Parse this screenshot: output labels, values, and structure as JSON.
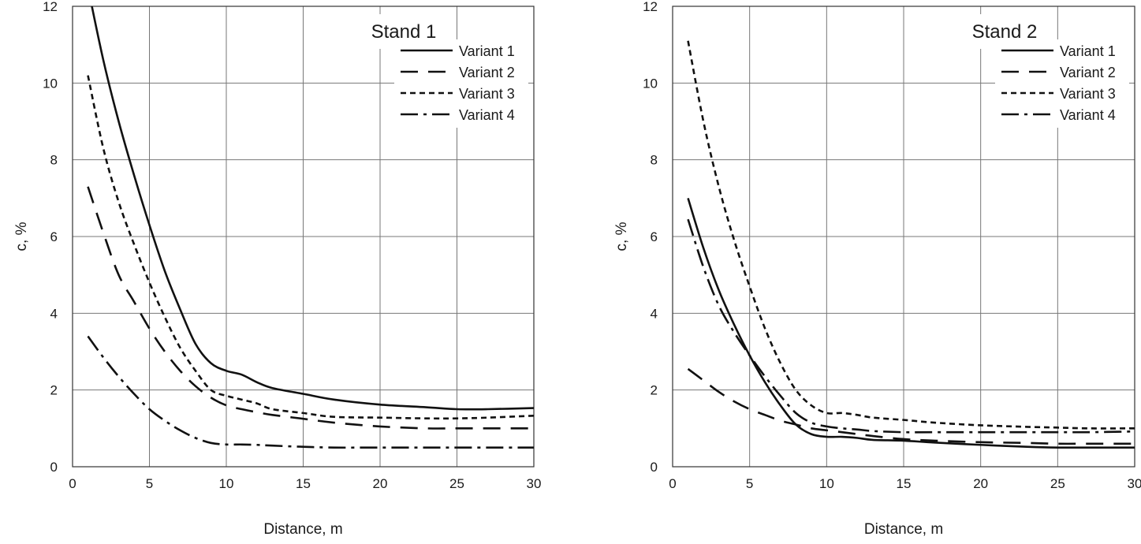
{
  "chart_data": [
    {
      "type": "line",
      "title": "Stand 1",
      "xlabel": "Distance, m",
      "ylabel": "c, %",
      "xlim": [
        0,
        30
      ],
      "ylim": [
        0,
        12
      ],
      "xticks": [
        0,
        5,
        10,
        15,
        20,
        25,
        30
      ],
      "yticks": [
        0,
        2,
        4,
        6,
        8,
        10,
        12
      ],
      "grid": true,
      "legend_position": "top-right",
      "series": [
        {
          "name": "Variant 1",
          "dash": "solid",
          "x": [
            1,
            2,
            3,
            4,
            5,
            6,
            7,
            8,
            9,
            10,
            11,
            12,
            13,
            15,
            17,
            20,
            23,
            25,
            27,
            30
          ],
          "y": [
            12.5,
            10.6,
            9.0,
            7.6,
            6.3,
            5.1,
            4.1,
            3.2,
            2.7,
            2.5,
            2.4,
            2.2,
            2.05,
            1.9,
            1.75,
            1.62,
            1.55,
            1.5,
            1.5,
            1.53
          ]
        },
        {
          "name": "Variant 2",
          "dash": "long",
          "x": [
            1,
            2,
            3,
            4,
            5,
            6,
            7,
            8,
            9,
            10,
            11,
            12,
            13,
            15,
            17,
            20,
            23,
            25,
            27,
            30
          ],
          "y": [
            7.3,
            6.1,
            5.0,
            4.3,
            3.6,
            3.0,
            2.5,
            2.1,
            1.8,
            1.6,
            1.5,
            1.42,
            1.35,
            1.25,
            1.15,
            1.05,
            1.0,
            1.0,
            1.0,
            1.0
          ]
        },
        {
          "name": "Variant 3",
          "dash": "short",
          "x": [
            1,
            2,
            3,
            4,
            5,
            6,
            7,
            8,
            9,
            10,
            11,
            12,
            13,
            15,
            17,
            20,
            23,
            25,
            27,
            30
          ],
          "y": [
            10.2,
            8.3,
            6.9,
            5.8,
            4.8,
            3.9,
            3.1,
            2.5,
            2.0,
            1.85,
            1.75,
            1.65,
            1.5,
            1.4,
            1.3,
            1.28,
            1.26,
            1.26,
            1.28,
            1.33
          ]
        },
        {
          "name": "Variant 4",
          "dash": "dashdot",
          "x": [
            1,
            2,
            3,
            4,
            5,
            6,
            7,
            8,
            9,
            10,
            11,
            12,
            13,
            15,
            17,
            20,
            23,
            25,
            27,
            30
          ],
          "y": [
            3.4,
            2.85,
            2.35,
            1.9,
            1.5,
            1.2,
            0.95,
            0.75,
            0.62,
            0.58,
            0.58,
            0.57,
            0.55,
            0.52,
            0.5,
            0.5,
            0.5,
            0.5,
            0.5,
            0.5
          ]
        }
      ]
    },
    {
      "type": "line",
      "title": "Stand 2",
      "xlabel": "Distance, m",
      "ylabel": "c, %",
      "xlim": [
        0,
        30
      ],
      "ylim": [
        0,
        12
      ],
      "xticks": [
        0,
        5,
        10,
        15,
        20,
        25,
        30
      ],
      "yticks": [
        0,
        2,
        4,
        6,
        8,
        10,
        12
      ],
      "grid": true,
      "legend_position": "top-right",
      "series": [
        {
          "name": "Variant 1",
          "dash": "solid",
          "x": [
            1,
            2,
            3,
            4,
            5,
            6,
            7,
            8,
            9,
            10,
            11,
            12,
            13,
            15,
            17,
            20,
            23,
            25,
            27,
            30
          ],
          "y": [
            7.0,
            5.7,
            4.6,
            3.7,
            2.9,
            2.2,
            1.6,
            1.1,
            0.85,
            0.78,
            0.78,
            0.75,
            0.7,
            0.68,
            0.63,
            0.57,
            0.52,
            0.5,
            0.5,
            0.5
          ]
        },
        {
          "name": "Variant 2",
          "dash": "long",
          "x": [
            1,
            2,
            3,
            4,
            5,
            6,
            7,
            8,
            9,
            10,
            11,
            12,
            13,
            15,
            17,
            20,
            23,
            25,
            27,
            30
          ],
          "y": [
            2.55,
            2.25,
            1.95,
            1.7,
            1.5,
            1.35,
            1.2,
            1.1,
            1.0,
            0.95,
            0.9,
            0.85,
            0.8,
            0.72,
            0.68,
            0.64,
            0.62,
            0.6,
            0.6,
            0.6
          ]
        },
        {
          "name": "Variant 3",
          "dash": "short",
          "x": [
            1,
            2,
            3,
            4,
            5,
            6,
            7,
            8,
            9,
            10,
            11,
            12,
            13,
            15,
            17,
            20,
            23,
            25,
            27,
            30
          ],
          "y": [
            11.1,
            9.0,
            7.3,
            5.9,
            4.7,
            3.6,
            2.7,
            2.0,
            1.6,
            1.4,
            1.4,
            1.35,
            1.28,
            1.22,
            1.15,
            1.08,
            1.04,
            1.02,
            1.0,
            1.0
          ]
        },
        {
          "name": "Variant 4",
          "dash": "dashdot",
          "x": [
            1,
            2,
            3,
            4,
            5,
            6,
            7,
            8,
            9,
            10,
            11,
            12,
            13,
            15,
            17,
            20,
            23,
            25,
            27,
            30
          ],
          "y": [
            6.45,
            5.2,
            4.2,
            3.5,
            2.9,
            2.35,
            1.85,
            1.4,
            1.15,
            1.05,
            1.0,
            0.97,
            0.93,
            0.9,
            0.9,
            0.9,
            0.9,
            0.9,
            0.9,
            0.92
          ]
        }
      ]
    }
  ]
}
